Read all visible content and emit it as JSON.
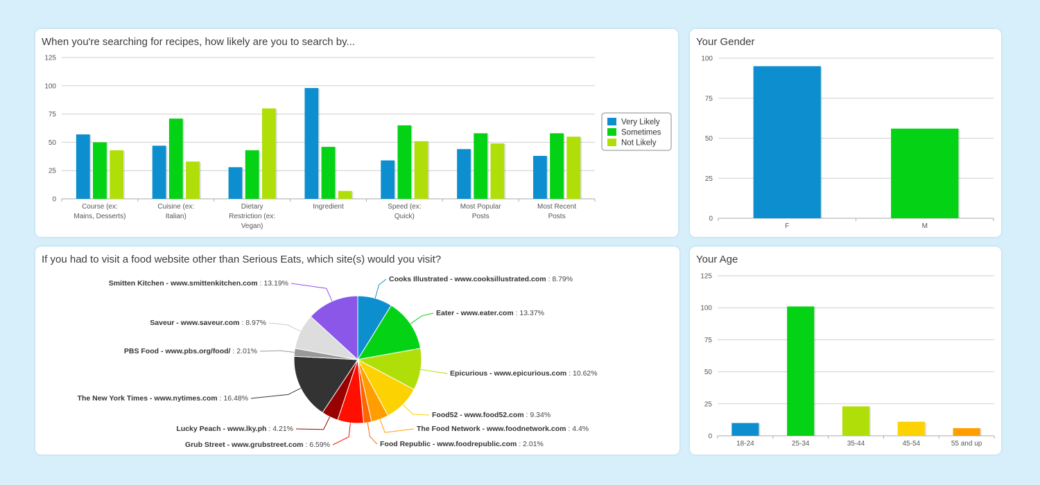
{
  "colors": {
    "blue": "#0d8ecf",
    "green": "#04d215",
    "lime": "#b0de09",
    "yellow": "#fcd202",
    "orange": "#ff9e01",
    "red": "#ff0f00",
    "darkred": "#990000",
    "black": "#333333",
    "gray": "#999999",
    "lightgray": "#dddddd",
    "purple": "#8a57e8"
  },
  "chart_data": [
    {
      "id": "search",
      "type": "bar",
      "title": "When you're searching for recipes, how likely are you to search by...",
      "categories": [
        [
          "Course (ex:",
          "Mains, Desserts)"
        ],
        [
          "Cuisine (ex:",
          "Italian)"
        ],
        [
          "Dietary",
          "Restriction (ex:",
          "Vegan)"
        ],
        [
          "Ingredient"
        ],
        [
          "Speed (ex:",
          "Quick)"
        ],
        [
          "Most Popular",
          "Posts"
        ],
        [
          "Most Recent",
          "Posts"
        ]
      ],
      "series": [
        {
          "name": "Very Likely",
          "color": "#0d8ecf",
          "values": [
            57,
            47,
            28,
            98,
            34,
            44,
            38
          ]
        },
        {
          "name": "Sometimes",
          "color": "#04d215",
          "values": [
            50,
            71,
            43,
            46,
            65,
            58,
            58
          ]
        },
        {
          "name": "Not Likely",
          "color": "#b0de09",
          "values": [
            43,
            33,
            80,
            7,
            51,
            49,
            55
          ]
        }
      ],
      "ylim": [
        0,
        125
      ],
      "yticks": [
        0,
        25,
        50,
        75,
        100,
        125
      ],
      "legend": "right",
      "grid": true
    },
    {
      "id": "gender",
      "type": "bar",
      "title": "Your Gender",
      "categories": [
        [
          "F"
        ],
        [
          "M"
        ]
      ],
      "values": [
        95,
        56
      ],
      "colors": [
        "#0d8ecf",
        "#04d215"
      ],
      "ylim": [
        0,
        100
      ],
      "yticks": [
        0,
        25,
        50,
        75,
        100
      ],
      "grid": true
    },
    {
      "id": "sites",
      "type": "pie",
      "title": "If you had to visit a food website other than Serious Eats, which site(s) would you visit?",
      "slices": [
        {
          "name": "Cooks Illustrated - www.cooksillustrated.com",
          "value": 8.79,
          "label": "8.79%",
          "color": "#0d8ecf"
        },
        {
          "name": "Eater - www.eater.com",
          "value": 13.37,
          "label": "13.37%",
          "color": "#04d215"
        },
        {
          "name": "Epicurious - www.epicurious.com",
          "value": 10.62,
          "label": "10.62%",
          "color": "#b0de09"
        },
        {
          "name": "Food52 - www.food52.com",
          "value": 9.34,
          "label": "9.34%",
          "color": "#fcd202"
        },
        {
          "name": "The Food Network - www.foodnetwork.com",
          "value": 4.4,
          "label": "4.4%",
          "color": "#ff9e01"
        },
        {
          "name": "Food Republic - www.foodrepublic.com",
          "value": 2.01,
          "label": "2.01%",
          "color": "#ff6600"
        },
        {
          "name": "Grub Street - www.grubstreet.com",
          "value": 6.59,
          "label": "6.59%",
          "color": "#ff0f00"
        },
        {
          "name": "Lucky Peach - www.lky.ph",
          "value": 4.21,
          "label": "4.21%",
          "color": "#990000"
        },
        {
          "name": "The New York Times - www.nytimes.com",
          "value": 16.48,
          "label": "16.48%",
          "color": "#333333"
        },
        {
          "name": "PBS Food - www.pbs.org/food/",
          "value": 2.01,
          "label": "2.01%",
          "color": "#999999"
        },
        {
          "name": "Saveur - www.saveur.com",
          "value": 8.97,
          "label": "8.97%",
          "color": "#dddddd"
        },
        {
          "name": "Smitten Kitchen - www.smittenkitchen.com",
          "value": 13.19,
          "label": "13.19%",
          "color": "#8a57e8"
        }
      ]
    },
    {
      "id": "age",
      "type": "bar",
      "title": "Your Age",
      "categories": [
        [
          "18-24"
        ],
        [
          "25-34"
        ],
        [
          "35-44"
        ],
        [
          "45-54"
        ],
        [
          "55 and up"
        ]
      ],
      "values": [
        10,
        101,
        23,
        11,
        6
      ],
      "colors": [
        "#0d8ecf",
        "#04d215",
        "#b0de09",
        "#fcd202",
        "#ff9e01"
      ],
      "ylim": [
        0,
        125
      ],
      "yticks": [
        0,
        25,
        50,
        75,
        100,
        125
      ],
      "grid": true
    }
  ]
}
